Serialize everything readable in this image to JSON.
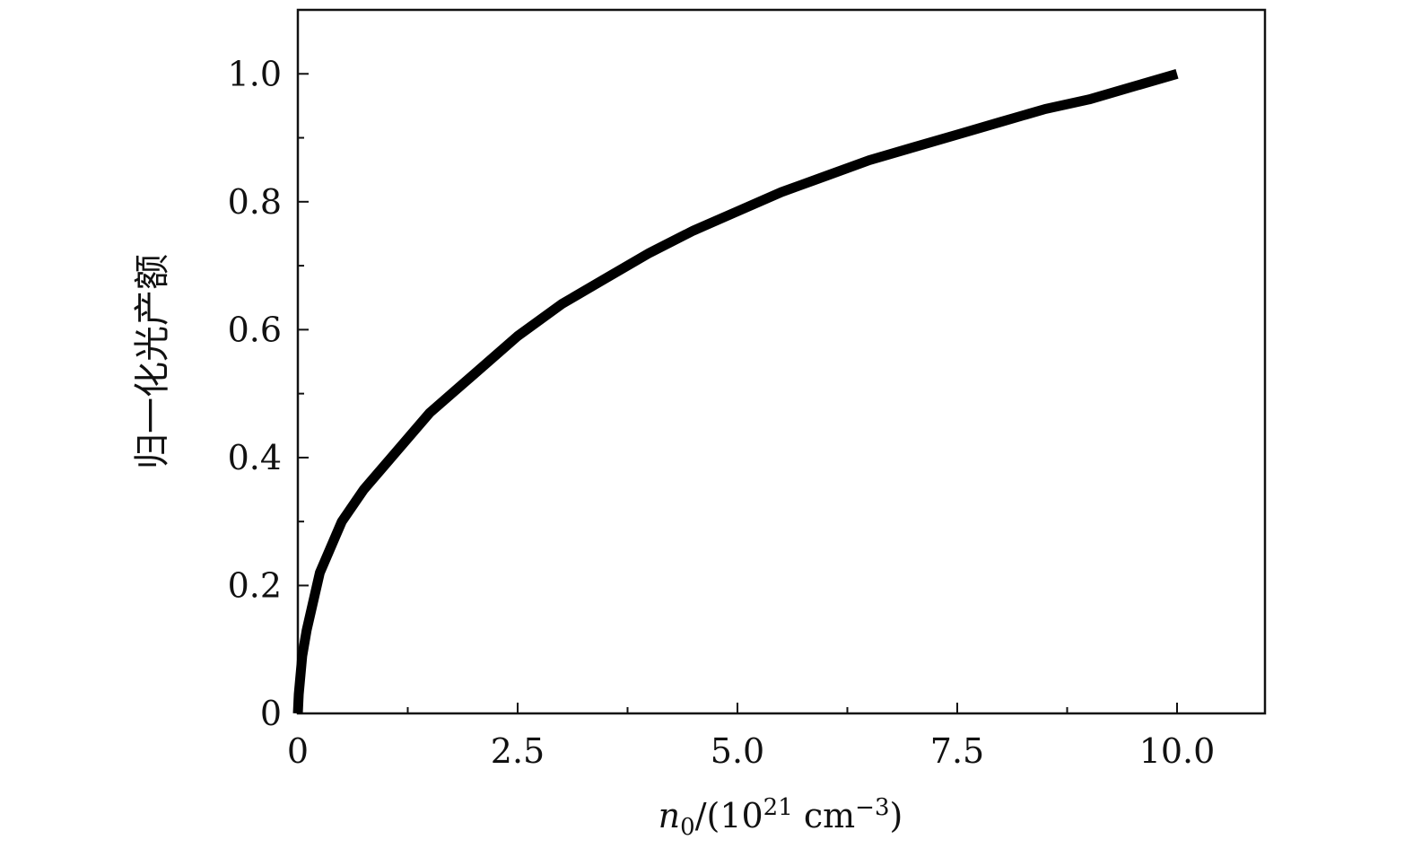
{
  "chart_data": {
    "type": "line",
    "xlabel_parts": {
      "var": "n",
      "var_sub": "0",
      "mid": "/(10",
      "pow": "21",
      "unit": " cm",
      "unit_pow": "−3",
      "close": ")"
    },
    "ylabel": "归一化光产额",
    "xlim": [
      0,
      11
    ],
    "ylim": [
      0,
      1.1
    ],
    "x_ticks": [
      {
        "value": 0,
        "label": "0"
      },
      {
        "value": 2.5,
        "label": "2.5"
      },
      {
        "value": 5.0,
        "label": "5.0"
      },
      {
        "value": 7.5,
        "label": "7.5"
      },
      {
        "value": 10.0,
        "label": "10.0"
      }
    ],
    "x_minor_ticks": [
      1.25,
      3.75,
      6.25,
      8.75
    ],
    "y_ticks": [
      {
        "value": 0,
        "label": "0"
      },
      {
        "value": 0.2,
        "label": "0.2"
      },
      {
        "value": 0.4,
        "label": "0.4"
      },
      {
        "value": 0.6,
        "label": "0.6"
      },
      {
        "value": 0.8,
        "label": "0.8"
      },
      {
        "value": 1.0,
        "label": "1.0"
      }
    ],
    "y_minor_ticks": [
      0.1,
      0.3,
      0.5,
      0.7,
      0.9
    ],
    "grid": false,
    "series": [
      {
        "color": "#000000",
        "x": [
          0,
          0.01,
          0.05,
          0.1,
          0.25,
          0.5,
          0.75,
          1.0,
          1.5,
          2.0,
          2.5,
          3.0,
          3.5,
          4.0,
          4.5,
          5.0,
          5.5,
          6.0,
          6.5,
          7.0,
          7.5,
          8.0,
          8.5,
          9.0,
          9.5,
          10.0
        ],
        "y": [
          0,
          0.03,
          0.09,
          0.13,
          0.22,
          0.3,
          0.35,
          0.39,
          0.47,
          0.53,
          0.59,
          0.64,
          0.68,
          0.72,
          0.755,
          0.785,
          0.815,
          0.84,
          0.865,
          0.885,
          0.905,
          0.925,
          0.945,
          0.96,
          0.98,
          1.0
        ]
      }
    ]
  }
}
